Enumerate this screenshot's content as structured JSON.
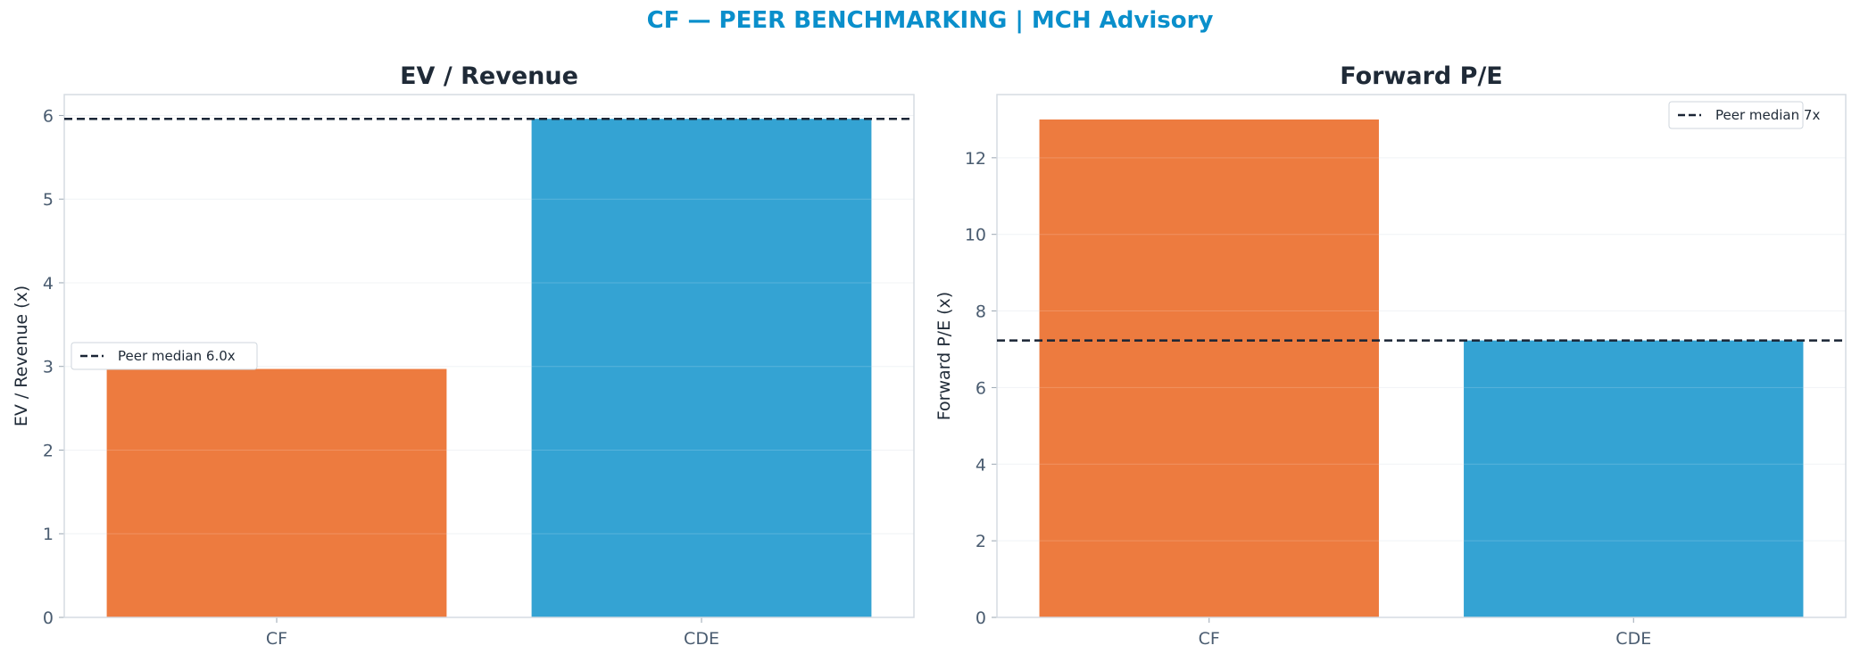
{
  "figure": {
    "title": "CF — PEER BENCHMARKING | MCH Advisory",
    "title_color": "#0a8fcb"
  },
  "colors": {
    "cf": "#ed7b3f",
    "cde": "#34a3d3",
    "median_line": "#1a2535",
    "title": "#1f2a37",
    "tick": "#4a5c70",
    "frame": "#d5dbe2"
  },
  "chart_data": [
    {
      "type": "bar",
      "title": "EV / Revenue",
      "ylabel": "EV / Revenue (x)",
      "xlabel": "",
      "categories": [
        "CF",
        "CDE"
      ],
      "values": [
        2.97,
        5.96
      ],
      "bar_colors": [
        "#ed7b3f",
        "#34a3d3"
      ],
      "ylim": [
        0,
        6.25
      ],
      "yticks": [
        0,
        1,
        2,
        3,
        4,
        5,
        6
      ],
      "reference_line": {
        "value": 5.96,
        "style": "dashed",
        "label": "Peer median 6.0x"
      },
      "legend": {
        "placement": "center-left",
        "entries": [
          "Peer median 6.0x"
        ]
      },
      "grid": "horizontal"
    },
    {
      "type": "bar",
      "title": "Forward P/E",
      "ylabel": "Forward P/E (x)",
      "xlabel": "",
      "categories": [
        "CF",
        "CDE"
      ],
      "values": [
        13.0,
        7.23
      ],
      "bar_colors": [
        "#ed7b3f",
        "#34a3d3"
      ],
      "ylim": [
        0,
        13.65
      ],
      "yticks": [
        0,
        2,
        4,
        6,
        8,
        10,
        12
      ],
      "reference_line": {
        "value": 7.23,
        "style": "dashed",
        "label": "Peer median 7x"
      },
      "legend": {
        "placement": "top-right",
        "entries": [
          "Peer median 7x"
        ]
      },
      "grid": "horizontal"
    }
  ]
}
